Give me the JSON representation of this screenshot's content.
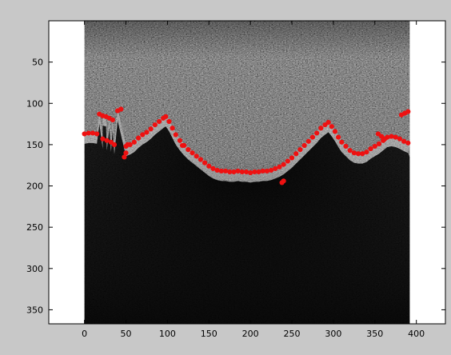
{
  "figure": {
    "x_ticks": [
      "0",
      "50",
      "100",
      "150",
      "200",
      "250",
      "300",
      "350",
      "400"
    ],
    "y_ticks": [
      "50",
      "100",
      "150",
      "200",
      "250",
      "300",
      "350"
    ],
    "xlim": [
      -43,
      435
    ],
    "ylim": [
      0,
      367
    ],
    "image_extent_x": [
      0,
      392
    ],
    "colors": {
      "window_background": "#c8c8c8",
      "axes_background": "#ffffff",
      "overlay_points": "#ee1111"
    }
  },
  "overlay_boundary": {
    "description_color": "#ee1111",
    "points": [
      [
        0,
        137
      ],
      [
        5,
        136
      ],
      [
        10,
        136
      ],
      [
        15,
        137
      ],
      [
        22,
        143
      ],
      [
        27,
        145
      ],
      [
        32,
        147
      ],
      [
        36,
        150
      ],
      [
        50,
        152
      ],
      [
        55,
        150
      ],
      [
        60,
        147
      ],
      [
        65,
        142
      ],
      [
        70,
        138
      ],
      [
        75,
        135
      ],
      [
        80,
        131
      ],
      [
        85,
        126
      ],
      [
        90,
        122
      ],
      [
        95,
        118
      ],
      [
        98,
        116
      ],
      [
        102,
        122
      ],
      [
        106,
        130
      ],
      [
        110,
        138
      ],
      [
        115,
        145
      ],
      [
        120,
        151
      ],
      [
        125,
        156
      ],
      [
        130,
        160
      ],
      [
        135,
        164
      ],
      [
        140,
        168
      ],
      [
        145,
        172
      ],
      [
        150,
        176
      ],
      [
        155,
        179
      ],
      [
        160,
        181
      ],
      [
        165,
        182
      ],
      [
        170,
        182
      ],
      [
        175,
        183
      ],
      [
        180,
        183
      ],
      [
        185,
        182
      ],
      [
        190,
        183
      ],
      [
        195,
        183
      ],
      [
        200,
        184
      ],
      [
        205,
        183
      ],
      [
        210,
        183
      ],
      [
        215,
        182
      ],
      [
        220,
        182
      ],
      [
        225,
        181
      ],
      [
        230,
        179
      ],
      [
        235,
        177
      ],
      [
        240,
        174
      ],
      [
        245,
        170
      ],
      [
        250,
        166
      ],
      [
        255,
        161
      ],
      [
        260,
        156
      ],
      [
        265,
        151
      ],
      [
        270,
        146
      ],
      [
        275,
        141
      ],
      [
        280,
        136
      ],
      [
        285,
        130
      ],
      [
        290,
        126
      ],
      [
        294,
        123
      ],
      [
        298,
        128
      ],
      [
        302,
        134
      ],
      [
        306,
        141
      ],
      [
        310,
        147
      ],
      [
        315,
        152
      ],
      [
        320,
        157
      ],
      [
        325,
        160
      ],
      [
        330,
        161
      ],
      [
        335,
        161
      ],
      [
        340,
        159
      ],
      [
        345,
        155
      ],
      [
        350,
        152
      ],
      [
        355,
        149
      ],
      [
        360,
        145
      ],
      [
        365,
        141
      ],
      [
        370,
        140
      ],
      [
        375,
        141
      ],
      [
        380,
        143
      ],
      [
        385,
        146
      ],
      [
        390,
        148
      ],
      [
        18,
        113
      ],
      [
        22,
        115
      ],
      [
        26,
        116
      ],
      [
        30,
        118
      ],
      [
        34,
        120
      ],
      [
        40,
        109
      ],
      [
        44,
        107
      ],
      [
        48,
        165
      ],
      [
        50,
        160
      ],
      [
        52,
        150
      ],
      [
        118,
        151
      ],
      [
        238,
        196
      ],
      [
        240,
        194
      ],
      [
        354,
        137
      ],
      [
        358,
        140
      ],
      [
        362,
        143
      ],
      [
        382,
        114
      ],
      [
        386,
        112
      ],
      [
        390,
        110
      ]
    ]
  }
}
